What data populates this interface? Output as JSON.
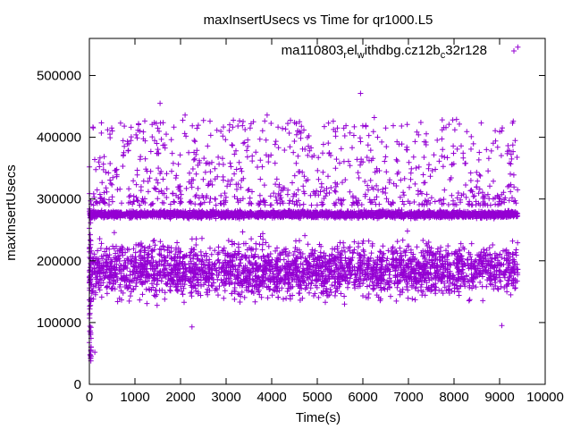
{
  "chart_data": {
    "type": "scatter",
    "title": "maxInsertUsecs vs Time for qr1000.L5",
    "xlabel": "Time(s)",
    "ylabel": "maxInsertUsecs",
    "xlim": [
      0,
      10000
    ],
    "ylim": [
      0,
      560000
    ],
    "x_ticks": [
      0,
      1000,
      2000,
      3000,
      4000,
      5000,
      6000,
      7000,
      8000,
      9000,
      10000
    ],
    "y_ticks": [
      0,
      100000,
      200000,
      300000,
      400000,
      500000
    ],
    "x_tick_labels": [
      "0",
      "1000",
      "2000",
      "3000",
      "4000",
      "5000",
      "6000",
      "7000",
      "8000",
      "9000",
      "10000"
    ],
    "y_tick_labels": [
      "0",
      "100000",
      "200000",
      "300000",
      "400000",
      "500000"
    ],
    "grid": false,
    "legend": {
      "position": "top-right",
      "label_parts": [
        "ma110803",
        "r",
        "el",
        "w",
        "ithdbg.cz12b",
        "c",
        "32r128"
      ],
      "label_sub_flags": [
        false,
        true,
        false,
        true,
        false,
        true,
        false
      ],
      "label_text": "ma110803_rel_withdbg.cz12b_c32r128",
      "marker": "+"
    },
    "series": [
      {
        "name": "ma110803_rel_withdbg.cz12b_c32r128",
        "color": "#9400d3",
        "marker": "+",
        "x_range": [
          0,
          9400
        ],
        "dense_band": {
          "center": 275000,
          "spread": 9000
        },
        "main_cloud": {
          "low": 120000,
          "high": 250000
        },
        "upper_cloud": {
          "low": 290000,
          "high": 430000
        },
        "early_ramp": {
          "x_end": 40,
          "low": 35000,
          "high": 300000
        },
        "outliers": [
          [
            1550,
            455000
          ],
          [
            2100,
            436000
          ],
          [
            3900,
            436000
          ],
          [
            5950,
            471000
          ],
          [
            6250,
            432000
          ],
          [
            9300,
            426000
          ],
          [
            9400,
            546000
          ],
          [
            2250,
            93000
          ],
          [
            9050,
            95000
          ],
          [
            120,
            52000
          ],
          [
            30,
            42000
          ],
          [
            15,
            48000
          ],
          [
            400,
            412000
          ],
          [
            450,
            405000
          ],
          [
            3600,
            425000
          ],
          [
            5350,
            426000
          ]
        ]
      }
    ]
  }
}
